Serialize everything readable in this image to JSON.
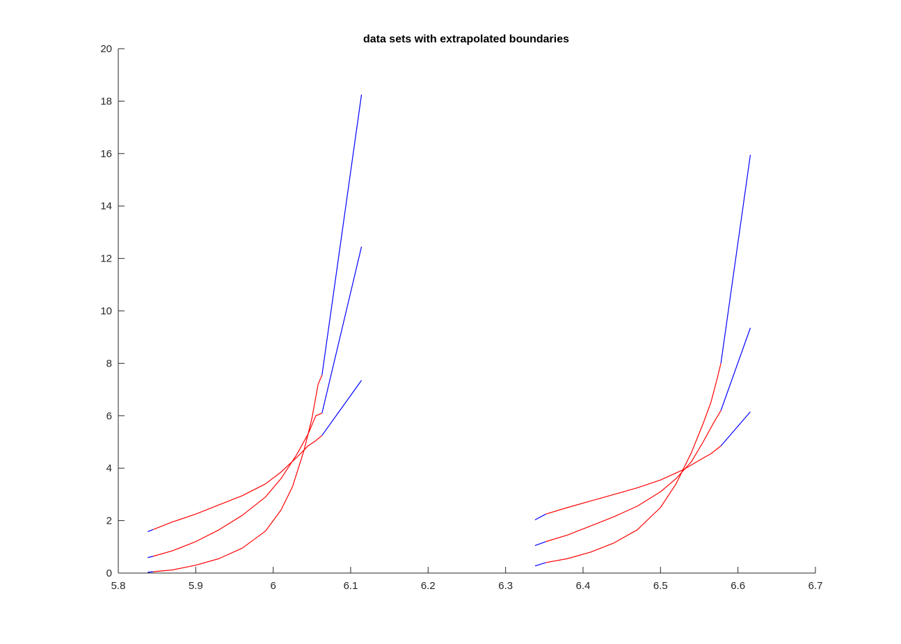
{
  "chart_data": {
    "type": "line",
    "title": "data sets with extrapolated boundaries",
    "xlabel": "",
    "ylabel": "",
    "xlim": [
      5.8,
      6.7
    ],
    "ylim": [
      0,
      20
    ],
    "xticks": [
      "5.8",
      "5.9",
      "6",
      "6.1",
      "6.2",
      "6.3",
      "6.4",
      "6.5",
      "6.6",
      "6.7"
    ],
    "yticks": [
      "0",
      "2",
      "4",
      "6",
      "8",
      "10",
      "12",
      "14",
      "16",
      "18",
      "20"
    ],
    "grid": false,
    "legend": "none",
    "colors": {
      "data": "#ff0000",
      "extrapolated": "#0000ff",
      "axis": "#262626"
    },
    "series": [
      {
        "group": 1,
        "kind": "extrapolated",
        "x": [
          5.838,
          5.845
        ],
        "y": [
          1.58,
          1.66
        ]
      },
      {
        "group": 1,
        "kind": "data",
        "x": [
          5.845,
          5.87,
          5.9,
          5.93,
          5.96,
          5.99,
          6.01,
          6.03,
          6.045,
          6.055,
          6.063
        ],
        "y": [
          1.66,
          1.95,
          2.25,
          2.6,
          2.95,
          3.4,
          3.85,
          4.4,
          4.85,
          5.05,
          5.25
        ]
      },
      {
        "group": 1,
        "kind": "extrapolated",
        "x": [
          6.063,
          6.114
        ],
        "y": [
          5.25,
          7.35
        ]
      },
      {
        "group": 1,
        "kind": "extrapolated",
        "x": [
          5.838,
          5.845
        ],
        "y": [
          0.59,
          0.64
        ]
      },
      {
        "group": 1,
        "kind": "data",
        "x": [
          5.845,
          5.87,
          5.9,
          5.93,
          5.96,
          5.99,
          6.01,
          6.03,
          6.045,
          6.055,
          6.063
        ],
        "y": [
          0.64,
          0.85,
          1.2,
          1.65,
          2.2,
          2.9,
          3.6,
          4.5,
          5.3,
          6.0,
          6.1
        ]
      },
      {
        "group": 1,
        "kind": "extrapolated",
        "x": [
          6.063,
          6.114
        ],
        "y": [
          6.1,
          12.45
        ]
      },
      {
        "group": 1,
        "kind": "extrapolated",
        "x": [
          5.838,
          5.845
        ],
        "y": [
          0.03,
          0.05
        ]
      },
      {
        "group": 1,
        "kind": "data",
        "x": [
          5.845,
          5.87,
          5.9,
          5.93,
          5.96,
          5.99,
          6.01,
          6.025,
          6.04,
          6.05,
          6.058,
          6.063
        ],
        "y": [
          0.05,
          0.12,
          0.3,
          0.55,
          0.95,
          1.6,
          2.4,
          3.3,
          4.7,
          5.9,
          7.2,
          7.55
        ]
      },
      {
        "group": 1,
        "kind": "extrapolated",
        "x": [
          6.063,
          6.114
        ],
        "y": [
          7.55,
          18.25
        ]
      },
      {
        "group": 2,
        "kind": "extrapolated",
        "x": [
          6.338,
          6.352
        ],
        "y": [
          2.03,
          2.25
        ]
      },
      {
        "group": 2,
        "kind": "data",
        "x": [
          6.352,
          6.38,
          6.41,
          6.44,
          6.47,
          6.5,
          6.53,
          6.55,
          6.565,
          6.578
        ],
        "y": [
          2.25,
          2.5,
          2.75,
          3.0,
          3.25,
          3.55,
          3.95,
          4.3,
          4.55,
          4.85
        ]
      },
      {
        "group": 2,
        "kind": "extrapolated",
        "x": [
          6.578,
          6.616
        ],
        "y": [
          4.85,
          6.15
        ]
      },
      {
        "group": 2,
        "kind": "extrapolated",
        "x": [
          6.338,
          6.352
        ],
        "y": [
          1.05,
          1.2
        ]
      },
      {
        "group": 2,
        "kind": "data",
        "x": [
          6.352,
          6.38,
          6.41,
          6.44,
          6.47,
          6.5,
          6.52,
          6.54,
          6.555,
          6.568,
          6.578
        ],
        "y": [
          1.2,
          1.45,
          1.8,
          2.15,
          2.55,
          3.1,
          3.6,
          4.25,
          5.0,
          5.7,
          6.2
        ]
      },
      {
        "group": 2,
        "kind": "extrapolated",
        "x": [
          6.578,
          6.616
        ],
        "y": [
          6.2,
          9.35
        ]
      },
      {
        "group": 2,
        "kind": "extrapolated",
        "x": [
          6.338,
          6.352
        ],
        "y": [
          0.27,
          0.4
        ]
      },
      {
        "group": 2,
        "kind": "data",
        "x": [
          6.352,
          6.38,
          6.41,
          6.44,
          6.47,
          6.5,
          6.52,
          6.54,
          6.555,
          6.565,
          6.573,
          6.578
        ],
        "y": [
          0.4,
          0.55,
          0.8,
          1.15,
          1.65,
          2.5,
          3.4,
          4.6,
          5.7,
          6.5,
          7.4,
          8.0
        ]
      },
      {
        "group": 2,
        "kind": "extrapolated",
        "x": [
          6.578,
          6.616
        ],
        "y": [
          8.0,
          15.95
        ]
      }
    ]
  }
}
